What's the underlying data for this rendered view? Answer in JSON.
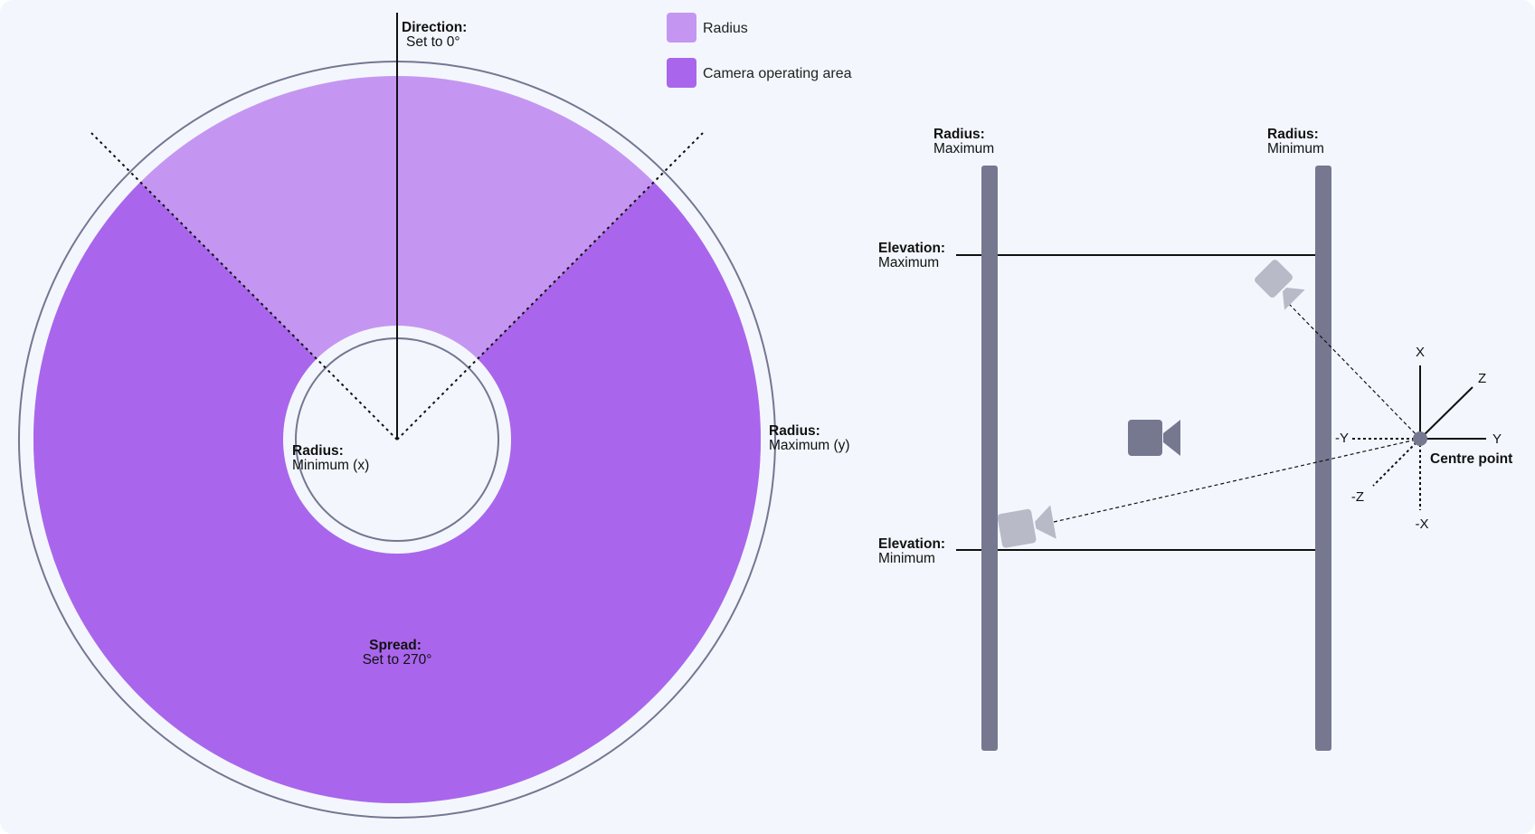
{
  "colors": {
    "background": "#f3f7fd",
    "radius_fill": "#c596f1",
    "operating_area_fill": "#a966ec",
    "ring_stroke": "#747791",
    "pole_fill": "#75788f",
    "ghost_camera": "#b8bac7",
    "camera": "#75788f",
    "line": "#111111"
  },
  "legend": [
    {
      "label": "Radius",
      "color": "#c596f1"
    },
    {
      "label": "Camera operating area",
      "color": "#a966ec"
    }
  ],
  "top_view": {
    "direction": {
      "title": "Direction:",
      "value": "Set to 0°"
    },
    "radius_min": {
      "title": "Radius:",
      "value": "Minimum (x)"
    },
    "radius_max": {
      "title": "Radius:",
      "value": "Maximum (y)"
    },
    "spread": {
      "title": "Spread:",
      "value": "Set to 270°"
    }
  },
  "side_view": {
    "radius_max": {
      "title": "Radius:",
      "value": "Maximum"
    },
    "radius_min": {
      "title": "Radius:",
      "value": "Minimum"
    },
    "elevation_max": {
      "title": "Elevation:",
      "value": "Maximum"
    },
    "elevation_min": {
      "title": "Elevation:",
      "value": "Minimum"
    },
    "axes": {
      "x": "X",
      "neg_x": "-X",
      "y": "Y",
      "neg_y": "-Y",
      "z": "Z",
      "neg_z": "-Z"
    },
    "centre_point": "Centre point",
    "icons": [
      "camera-icon",
      "camera-icon-ghost-top",
      "camera-icon-ghost-bottom"
    ]
  }
}
